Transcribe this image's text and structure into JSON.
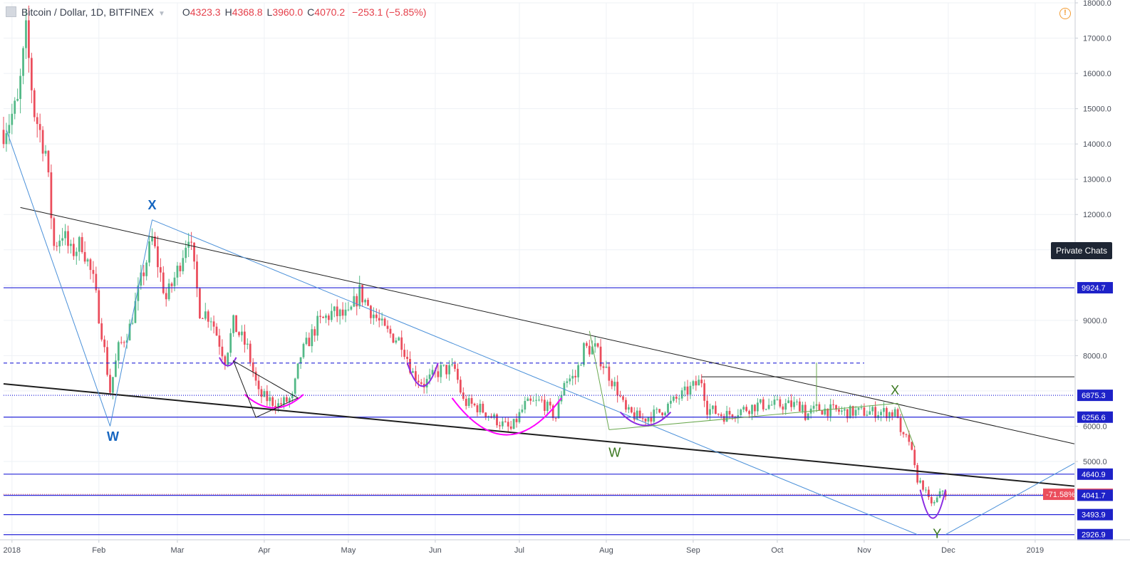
{
  "header": {
    "symbol": "Bitcoin / Dollar, 1D, BITFINEX",
    "open_label": "O",
    "open": "4323.3",
    "high_label": "H",
    "high": "4368.8",
    "low_label": "L",
    "low": "3960.0",
    "close_label": "C",
    "close": "4070.2",
    "change": "−253.1 (−5.85%)"
  },
  "warning_icon": "!",
  "private_chats_label": "Private Chats",
  "colors": {
    "up": "#53b987",
    "down": "#eb4d5c",
    "hline": "#2424d8",
    "trend": "#1e1e1e",
    "blue_line": "#4a90d9",
    "green_line": "#6aa84f",
    "magenta": "#ff00ff",
    "purple": "#8a2be2",
    "wave_blue": "#1565c0",
    "wave_green": "#38761d"
  },
  "chart_data": {
    "type": "candlestick",
    "title": "Bitcoin / Dollar, 1D, BITFINEX",
    "x_range": [
      "2017-12-29",
      "2019-01-15"
    ],
    "y_range": [
      2800,
      18000
    ],
    "x_ticks": [
      {
        "date": "2018-01-01",
        "label": "2018"
      },
      {
        "date": "2018-02-01",
        "label": "Feb"
      },
      {
        "date": "2018-03-01",
        "label": "Mar"
      },
      {
        "date": "2018-04-01",
        "label": "Apr"
      },
      {
        "date": "2018-05-01",
        "label": "May"
      },
      {
        "date": "2018-06-01",
        "label": "Jun"
      },
      {
        "date": "2018-07-01",
        "label": "Jul"
      },
      {
        "date": "2018-08-01",
        "label": "Aug"
      },
      {
        "date": "2018-09-01",
        "label": "Sep"
      },
      {
        "date": "2018-10-01",
        "label": "Oct"
      },
      {
        "date": "2018-11-01",
        "label": "Nov"
      },
      {
        "date": "2018-12-01",
        "label": "Dec"
      },
      {
        "date": "2019-01-01",
        "label": "2019"
      }
    ],
    "y_ticks": [
      {
        "value": 18000,
        "label": "18000.0"
      },
      {
        "value": 17000,
        "label": "17000.0"
      },
      {
        "value": 16000,
        "label": "16000.0"
      },
      {
        "value": 15000,
        "label": "15000.0"
      },
      {
        "value": 14000,
        "label": "14000.0"
      },
      {
        "value": 13000,
        "label": "13000.0"
      },
      {
        "value": 12000,
        "label": "12000.0"
      },
      {
        "value": 9000,
        "label": "9000.0"
      },
      {
        "value": 8000,
        "label": "8000.0"
      },
      {
        "value": 6000,
        "label": "6000.0"
      },
      {
        "value": 5000,
        "label": "5000.0"
      }
    ],
    "price_path": [
      [
        "2017-12-29",
        14400
      ],
      [
        "2018-01-03",
        15100
      ],
      [
        "2018-01-06",
        17100
      ],
      [
        "2018-01-09",
        14900
      ],
      [
        "2018-01-13",
        13800
      ],
      [
        "2018-01-16",
        11100
      ],
      [
        "2018-01-19",
        11500
      ],
      [
        "2018-01-22",
        10900
      ],
      [
        "2018-01-26",
        11200
      ],
      [
        "2018-01-30",
        10100
      ],
      [
        "2018-02-02",
        8700
      ],
      [
        "2018-02-05",
        7000
      ],
      [
        "2018-02-08",
        8200
      ],
      [
        "2018-02-12",
        8800
      ],
      [
        "2018-02-16",
        10100
      ],
      [
        "2018-02-20",
        11300
      ],
      [
        "2018-02-25",
        9600
      ],
      [
        "2018-03-01",
        10400
      ],
      [
        "2018-03-05",
        11500
      ],
      [
        "2018-03-09",
        9300
      ],
      [
        "2018-03-13",
        9100
      ],
      [
        "2018-03-18",
        7900
      ],
      [
        "2018-03-21",
        8900
      ],
      [
        "2018-03-26",
        8200
      ],
      [
        "2018-03-30",
        6900
      ],
      [
        "2018-04-06",
        6600
      ],
      [
        "2018-04-11",
        6800
      ],
      [
        "2018-04-14",
        8000
      ],
      [
        "2018-04-20",
        8900
      ],
      [
        "2018-04-25",
        9200
      ],
      [
        "2018-05-01",
        9100
      ],
      [
        "2018-05-05",
        9800
      ],
      [
        "2018-05-09",
        9300
      ],
      [
        "2018-05-14",
        8700
      ],
      [
        "2018-05-20",
        8400
      ],
      [
        "2018-05-24",
        7500
      ],
      [
        "2018-05-28",
        7200
      ],
      [
        "2018-06-03",
        7600
      ],
      [
        "2018-06-08",
        7600
      ],
      [
        "2018-06-11",
        6700
      ],
      [
        "2018-06-17",
        6500
      ],
      [
        "2018-06-24",
        6100
      ],
      [
        "2018-06-28",
        5900
      ],
      [
        "2018-07-03",
        6600
      ],
      [
        "2018-07-09",
        6700
      ],
      [
        "2018-07-14",
        6250
      ],
      [
        "2018-07-17",
        7300
      ],
      [
        "2018-07-21",
        7400
      ],
      [
        "2018-07-24",
        8200
      ],
      [
        "2018-07-28",
        8200
      ],
      [
        "2018-08-01",
        7600
      ],
      [
        "2018-08-05",
        7000
      ],
      [
        "2018-08-08",
        6400
      ],
      [
        "2018-08-14",
        6200
      ],
      [
        "2018-08-20",
        6400
      ],
      [
        "2018-08-25",
        6700
      ],
      [
        "2018-08-30",
        7000
      ],
      [
        "2018-09-04",
        7300
      ],
      [
        "2018-09-06",
        6500
      ],
      [
        "2018-09-12",
        6300
      ],
      [
        "2018-09-20",
        6500
      ],
      [
        "2018-09-24",
        6600
      ],
      [
        "2018-10-01",
        6600
      ],
      [
        "2018-10-10",
        6600
      ],
      [
        "2018-10-11",
        6300
      ],
      [
        "2018-10-15",
        6500
      ],
      [
        "2018-10-25",
        6400
      ],
      [
        "2018-11-01",
        6400
      ],
      [
        "2018-11-08",
        6400
      ],
      [
        "2018-11-13",
        6350
      ],
      [
        "2018-11-14",
        5700
      ],
      [
        "2018-11-17",
        5600
      ],
      [
        "2018-11-19",
        4800
      ],
      [
        "2018-11-20",
        4500
      ],
      [
        "2018-11-22",
        4300
      ],
      [
        "2018-11-24",
        3900
      ],
      [
        "2018-11-26",
        3800
      ],
      [
        "2018-11-29",
        4200
      ],
      [
        "2018-11-30",
        4070
      ]
    ],
    "horizontal_levels": [
      {
        "value": 9924.7,
        "label": "9924.7",
        "style": "solid"
      },
      {
        "value": 7790,
        "style": "dashed"
      },
      {
        "value": 6875.3,
        "label": "6875.3",
        "style": "dotted"
      },
      {
        "value": 6256.6,
        "label": "6256.6",
        "style": "solid"
      },
      {
        "value": 4640.9,
        "label": "4640.9",
        "style": "solid"
      },
      {
        "value": 4070.2,
        "label": "4070.2",
        "style": "dotted-red",
        "pct_label": "-71.58%"
      },
      {
        "value": 4041.7,
        "label": "4041.7",
        "style": "solid"
      },
      {
        "value": 3493.9,
        "label": "3493.9",
        "style": "solid"
      },
      {
        "value": 2926.9,
        "label": "2926.9",
        "style": "solid"
      }
    ],
    "trendlines": [
      {
        "from": [
          "2018-01-04",
          12200
        ],
        "to": [
          "2019-01-15",
          5500
        ],
        "color": "trend",
        "width": 1
      },
      {
        "from": [
          "2017-12-29",
          7200
        ],
        "to": [
          "2019-01-15",
          4300
        ],
        "color": "trend",
        "width": 2
      },
      {
        "from": [
          "2018-02-20",
          11850
        ],
        "to": [
          "2018-11-20",
          2926.9
        ],
        "color": "blue_line",
        "width": 1
      },
      {
        "from": [
          "2018-11-30",
          2926.9
        ],
        "to": [
          "2019-01-15",
          4950
        ],
        "color": "blue_line",
        "width": 1
      },
      {
        "from": [
          "2017-12-30",
          14400
        ],
        "to": [
          "2018-02-05",
          6000
        ],
        "color": "blue_line",
        "width": 1
      },
      {
        "from": [
          "2018-02-05",
          6000
        ],
        "to": [
          "2018-02-20",
          11850
        ],
        "color": "blue_line",
        "width": 1
      },
      {
        "from": [
          "2018-08-02",
          5900
        ],
        "to": [
          "2018-11-13",
          6650
        ],
        "color": "green_line",
        "width": 1
      },
      {
        "from": [
          "2018-07-26",
          8700
        ],
        "to": [
          "2018-08-02",
          5900
        ],
        "color": "green_line",
        "width": 1
      },
      {
        "from": [
          "2018-11-13",
          6650
        ],
        "to": [
          "2018-11-19",
          5400
        ],
        "color": "green_line",
        "width": 1
      },
      {
        "from": [
          "2018-09-04",
          7400
        ],
        "to": [
          "2019-01-15",
          7400
        ],
        "color": "trend",
        "width": 1
      },
      {
        "from": [
          "2018-10-15",
          7800
        ],
        "to": [
          "2018-10-15",
          6400
        ],
        "color": "green_line",
        "width": 1
      }
    ],
    "wave_labels": [
      {
        "text": "X",
        "date": "2018-02-20",
        "value": 12150,
        "color": "wave_blue"
      },
      {
        "text": "W",
        "date": "2018-02-06",
        "value": 5590,
        "color": "wave_blue"
      },
      {
        "text": "W",
        "date": "2018-08-04",
        "value": 5130,
        "color": "wave_green"
      },
      {
        "text": "X",
        "date": "2018-11-12",
        "value": 6900,
        "color": "wave_green"
      },
      {
        "text": "Y",
        "date": "2018-11-27",
        "value": 2830,
        "color": "wave_green"
      }
    ]
  }
}
